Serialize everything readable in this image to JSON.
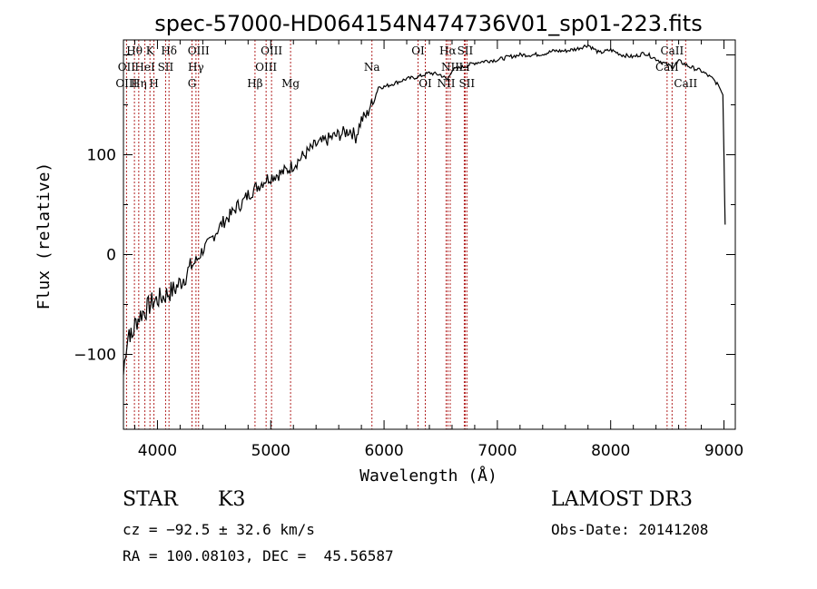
{
  "chart_data": {
    "type": "line",
    "title": "spec-57000-HD064154N474736V01_sp01-223.fits",
    "xlabel": "Wavelength (Å)",
    "ylabel": "Flux (relative)",
    "xlim": [
      3700,
      9100
    ],
    "ylim": [
      -175,
      215
    ],
    "xticks": [
      4000,
      5000,
      6000,
      7000,
      8000,
      9000
    ],
    "yticks": [
      -100,
      0,
      100
    ],
    "series": [
      {
        "name": "spectrum",
        "x": [
          3700,
          3720,
          3750,
          3775,
          3800,
          3850,
          3900,
          3950,
          4000,
          4050,
          4100,
          4150,
          4200,
          4250,
          4300,
          4350,
          4400,
          4450,
          4500,
          4550,
          4600,
          4650,
          4700,
          4750,
          4800,
          4850,
          4900,
          4950,
          5000,
          5050,
          5100,
          5150,
          5200,
          5250,
          5300,
          5350,
          5400,
          5450,
          5500,
          5550,
          5600,
          5650,
          5700,
          5750,
          5800,
          5850,
          5880,
          5900,
          5950,
          6000,
          6100,
          6200,
          6300,
          6400,
          6500,
          6560,
          6600,
          6700,
          6800,
          6900,
          7000,
          7100,
          7200,
          7300,
          7400,
          7500,
          7600,
          7700,
          7800,
          7900,
          8000,
          8100,
          8200,
          8300,
          8400,
          8500,
          8550,
          8600,
          8700,
          8800,
          8900,
          8950,
          8990,
          9000,
          9010
        ],
        "values": [
          -120,
          -95,
          -75,
          -85,
          -70,
          -60,
          -55,
          -48,
          -45,
          -42,
          -38,
          -35,
          -28,
          -20,
          -12,
          -5,
          5,
          10,
          20,
          28,
          35,
          40,
          48,
          52,
          60,
          65,
          70,
          75,
          78,
          80,
          82,
          85,
          90,
          95,
          100,
          105,
          110,
          112,
          115,
          118,
          120,
          122,
          125,
          118,
          135,
          140,
          150,
          150,
          168,
          168,
          172,
          176,
          178,
          182,
          180,
          175,
          185,
          188,
          192,
          194,
          195,
          198,
          200,
          200,
          201,
          204,
          204,
          206,
          210,
          202,
          205,
          200,
          198,
          202,
          196,
          190,
          188,
          194,
          188,
          184,
          176,
          170,
          160,
          100,
          30
        ]
      }
    ],
    "line_markers": [
      {
        "label": "Hθ",
        "x": 3797,
        "row": 0
      },
      {
        "label": "K",
        "x": 3934,
        "row": 0
      },
      {
        "label": "Hδ",
        "x": 4102,
        "row": 0
      },
      {
        "label": "OIII",
        "x": 4363,
        "row": 0
      },
      {
        "label": "OIII",
        "x": 5007,
        "row": 0
      },
      {
        "label": "OI",
        "x": 6300,
        "row": 0
      },
      {
        "label": "Hα",
        "x": 6563,
        "row": 0
      },
      {
        "label": "SII",
        "x": 6716,
        "row": 0
      },
      {
        "label": "CaII",
        "x": 8542,
        "row": 0
      },
      {
        "label": "OII",
        "x": 3727,
        "row": 1
      },
      {
        "label": "HeI",
        "x": 3889,
        "row": 1
      },
      {
        "label": "SII",
        "x": 4072,
        "row": 1
      },
      {
        "label": "Hγ",
        "x": 4340,
        "row": 1
      },
      {
        "label": "OIII",
        "x": 4959,
        "row": 1
      },
      {
        "label": "Na",
        "x": 5893,
        "row": 1
      },
      {
        "label": "NII",
        "x": 6584,
        "row": 1
      },
      {
        "label": "Li",
        "x": 6708,
        "row": 1
      },
      {
        "label": "CaII",
        "x": 8498,
        "row": 1
      },
      {
        "label": "OIII",
        "x": 3727,
        "row": 2
      },
      {
        "label": "Hη",
        "x": 3835,
        "row": 2
      },
      {
        "label": "H",
        "x": 3969,
        "row": 2
      },
      {
        "label": "G",
        "x": 4305,
        "row": 2
      },
      {
        "label": "Hβ",
        "x": 4861,
        "row": 2
      },
      {
        "label": "Mg",
        "x": 5175,
        "row": 2
      },
      {
        "label": "OI",
        "x": 6364,
        "row": 2
      },
      {
        "label": "NII",
        "x": 6548,
        "row": 2
      },
      {
        "label": "SII",
        "x": 6731,
        "row": 2
      },
      {
        "label": "CaII",
        "x": 8662,
        "row": 2
      }
    ],
    "grid": false
  },
  "info": {
    "object_type": "STAR",
    "subclass": "K3",
    "survey": "LAMOST DR3",
    "cz": "cz = −92.5 ± 32.6 km/s",
    "coords": "RA = 100.08103, DEC =  45.56587",
    "obs_date": "Obs-Date: 20141208"
  },
  "colors": {
    "spectrum": "#000000",
    "marker_line": "#b22222",
    "axis": "#000000",
    "background": "#ffffff"
  }
}
